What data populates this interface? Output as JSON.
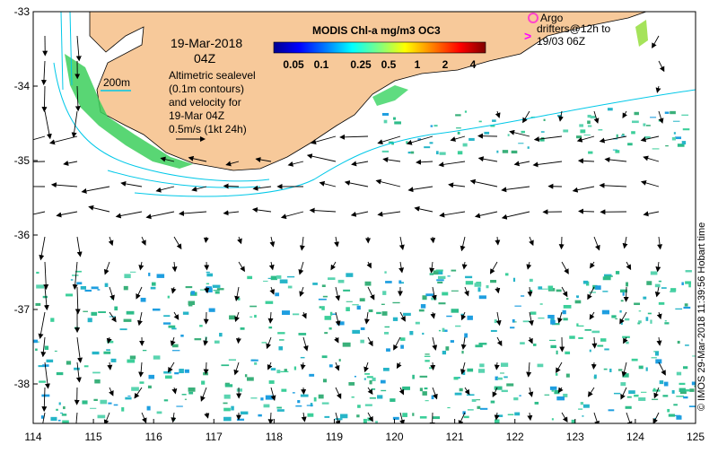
{
  "map": {
    "date": "19-Mar-2018",
    "time": "04Z",
    "contour_label": "200m",
    "altimetry_note": [
      "Altimetric sealevel",
      "(0.1m contours)",
      "and velocity for",
      "19-Mar 04Z",
      "0.5m/s (1kt 24h)"
    ],
    "colorbar_title": "MODIS Chl-a mg/m3 OC3",
    "colorbar_ticks": [
      "0.05",
      "0.1",
      "0.25",
      "0.5",
      "1",
      "2",
      "4"
    ],
    "argo_label": "Argo",
    "drifter_label": [
      "drifters@12h to",
      "19/03 06Z"
    ],
    "credit": "© IMOS 29-Mar-2018 11:39:56 Hobart time",
    "x_ticks": [
      "114",
      "115",
      "116",
      "117",
      "118",
      "119",
      "120",
      "121",
      "122",
      "123",
      "124",
      "125"
    ],
    "y_ticks": [
      "-33",
      "-34",
      "-35",
      "-36",
      "-37",
      "-38"
    ],
    "colors": {
      "land": "#f7c99a",
      "argo": "#ff44cc",
      "drifter": "#ff00ff",
      "contour": "#00c8e8",
      "arrow": "#000000"
    },
    "colorbar_colors": [
      "#00008f",
      "#0000ff",
      "#0080ff",
      "#00ffff",
      "#80ff80",
      "#ffff00",
      "#ff8000",
      "#ff0000",
      "#800000"
    ]
  }
}
